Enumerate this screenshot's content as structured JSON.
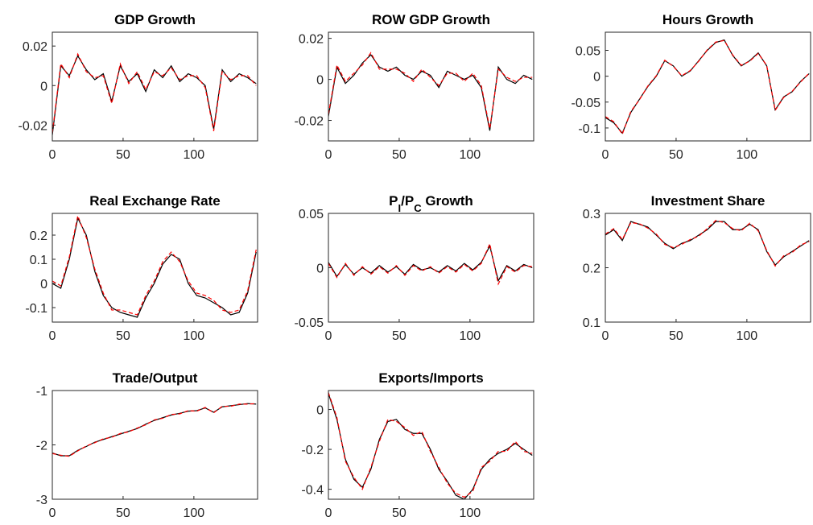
{
  "chart_data": [
    {
      "type": "line",
      "title": "GDP Growth",
      "x": [
        0,
        6,
        12,
        18,
        24,
        30,
        36,
        42,
        48,
        54,
        60,
        66,
        72,
        78,
        84,
        90,
        96,
        102,
        108,
        114,
        120,
        126,
        132,
        138,
        144
      ],
      "xlim": [
        0,
        145
      ],
      "xticks": [
        0,
        50,
        100
      ],
      "ylim": [
        -0.028,
        0.027
      ],
      "yticks": [
        -0.02,
        0,
        0.02
      ],
      "series": [
        {
          "color": "#000000",
          "style": "solid",
          "values": [
            -0.025,
            0.01,
            0.005,
            0.015,
            0.008,
            0.003,
            0.006,
            -0.008,
            0.01,
            0.002,
            0.006,
            -0.003,
            0.008,
            0.004,
            0.01,
            0.002,
            0.006,
            0.004,
            0.0,
            -0.022,
            0.008,
            0.002,
            0.006,
            0.004,
            0.001
          ]
        },
        {
          "color": "#ff0000",
          "style": "dashed",
          "values": [
            -0.024,
            0.011,
            0.004,
            0.016,
            0.007,
            0.004,
            0.005,
            -0.009,
            0.011,
            0.001,
            0.007,
            -0.002,
            0.007,
            0.005,
            0.009,
            0.003,
            0.005,
            0.005,
            -0.001,
            -0.023,
            0.007,
            0.003,
            0.005,
            0.005,
            0.0
          ]
        }
      ]
    },
    {
      "type": "line",
      "title": "ROW GDP Growth",
      "x": [
        0,
        6,
        12,
        18,
        24,
        30,
        36,
        42,
        48,
        54,
        60,
        66,
        72,
        78,
        84,
        90,
        96,
        102,
        108,
        114,
        120,
        126,
        132,
        138,
        144
      ],
      "xlim": [
        0,
        145
      ],
      "xticks": [
        0,
        50,
        100
      ],
      "ylim": [
        -0.03,
        0.023
      ],
      "yticks": [
        -0.02,
        0,
        0.02
      ],
      "series": [
        {
          "color": "#000000",
          "style": "solid",
          "values": [
            -0.018,
            0.006,
            -0.002,
            0.002,
            0.008,
            0.012,
            0.006,
            0.004,
            0.006,
            0.002,
            0.0,
            0.004,
            0.002,
            -0.004,
            0.004,
            0.002,
            0.0,
            0.002,
            -0.004,
            -0.025,
            0.006,
            0.0,
            -0.002,
            0.002,
            0.0
          ]
        },
        {
          "color": "#ff0000",
          "style": "dashed",
          "values": [
            -0.017,
            0.007,
            -0.001,
            0.003,
            0.007,
            0.013,
            0.005,
            0.005,
            0.005,
            0.003,
            -0.001,
            0.005,
            0.001,
            -0.003,
            0.003,
            0.003,
            -0.001,
            0.003,
            -0.003,
            -0.024,
            0.005,
            0.001,
            -0.001,
            0.001,
            0.001
          ]
        }
      ]
    },
    {
      "type": "line",
      "title": "Hours Growth",
      "x": [
        0,
        6,
        12,
        18,
        24,
        30,
        36,
        42,
        48,
        54,
        60,
        66,
        72,
        78,
        84,
        90,
        96,
        102,
        108,
        114,
        120,
        126,
        132,
        138,
        144
      ],
      "xlim": [
        0,
        145
      ],
      "xticks": [
        0,
        50,
        100
      ],
      "ylim": [
        -0.125,
        0.085
      ],
      "yticks": [
        -0.1,
        -0.05,
        0,
        0.05
      ],
      "series": [
        {
          "color": "#000000",
          "style": "solid",
          "values": [
            -0.08,
            -0.09,
            -0.11,
            -0.07,
            -0.045,
            -0.02,
            0.0,
            0.03,
            0.02,
            0.0,
            0.01,
            0.03,
            0.05,
            0.065,
            0.07,
            0.04,
            0.02,
            0.03,
            0.045,
            0.02,
            -0.065,
            -0.04,
            -0.03,
            -0.01,
            0.005
          ]
        },
        {
          "color": "#ff0000",
          "style": "dashed",
          "values": [
            -0.078,
            -0.088,
            -0.112,
            -0.068,
            -0.046,
            -0.019,
            0.001,
            0.031,
            0.019,
            0.001,
            0.011,
            0.029,
            0.051,
            0.066,
            0.069,
            0.041,
            0.021,
            0.029,
            0.044,
            0.021,
            -0.066,
            -0.041,
            -0.029,
            -0.011,
            0.006
          ]
        }
      ]
    },
    {
      "type": "line",
      "title": "Real Exchange Rate",
      "x": [
        0,
        6,
        12,
        18,
        24,
        30,
        36,
        42,
        48,
        54,
        60,
        66,
        72,
        78,
        84,
        90,
        96,
        102,
        108,
        114,
        120,
        126,
        132,
        138,
        144
      ],
      "xlim": [
        0,
        145
      ],
      "xticks": [
        0,
        50,
        100
      ],
      "ylim": [
        -0.16,
        0.29
      ],
      "yticks": [
        -0.1,
        0,
        0.1,
        0.2
      ],
      "series": [
        {
          "color": "#000000",
          "style": "solid",
          "values": [
            0.0,
            -0.02,
            0.1,
            0.27,
            0.2,
            0.05,
            -0.05,
            -0.1,
            -0.12,
            -0.13,
            -0.14,
            -0.06,
            0.0,
            0.08,
            0.12,
            0.1,
            0.0,
            -0.05,
            -0.06,
            -0.08,
            -0.1,
            -0.13,
            -0.12,
            -0.04,
            0.13
          ]
        },
        {
          "color": "#ff0000",
          "style": "dashed",
          "values": [
            0.01,
            -0.01,
            0.11,
            0.28,
            0.19,
            0.06,
            -0.04,
            -0.11,
            -0.11,
            -0.12,
            -0.13,
            -0.05,
            0.01,
            0.09,
            0.13,
            0.09,
            0.01,
            -0.04,
            -0.05,
            -0.07,
            -0.11,
            -0.12,
            -0.11,
            -0.03,
            0.14
          ]
        }
      ]
    },
    {
      "type": "line",
      "title": [
        {
          "text": "P"
        },
        {
          "text": "I",
          "sub": true
        },
        {
          "text": "/P"
        },
        {
          "text": "C",
          "sub": true
        },
        {
          "text": " Growth"
        }
      ],
      "x": [
        0,
        6,
        12,
        18,
        24,
        30,
        36,
        42,
        48,
        54,
        60,
        66,
        72,
        78,
        84,
        90,
        96,
        102,
        108,
        114,
        120,
        126,
        132,
        138,
        144
      ],
      "xlim": [
        0,
        145
      ],
      "xticks": [
        0,
        50,
        100
      ],
      "ylim": [
        -0.05,
        0.05
      ],
      "yticks": [
        -0.05,
        0,
        0.05
      ],
      "series": [
        {
          "color": "#000000",
          "style": "solid",
          "values": [
            0.005,
            -0.008,
            0.003,
            -0.006,
            0.0,
            -0.005,
            0.002,
            -0.004,
            0.001,
            -0.006,
            0.003,
            -0.002,
            0.0,
            -0.004,
            0.002,
            -0.003,
            0.004,
            -0.002,
            0.005,
            0.02,
            -0.012,
            0.002,
            -0.003,
            0.003,
            0.0
          ]
        },
        {
          "color": "#ff0000",
          "style": "dashed",
          "values": [
            0.004,
            -0.009,
            0.004,
            -0.007,
            0.001,
            -0.006,
            0.001,
            -0.005,
            0.002,
            -0.007,
            0.002,
            -0.003,
            0.001,
            -0.005,
            0.001,
            -0.004,
            0.003,
            -0.003,
            0.004,
            0.022,
            -0.015,
            0.001,
            -0.004,
            0.002,
            0.001
          ]
        }
      ]
    },
    {
      "type": "line",
      "title": "Investment Share",
      "x": [
        0,
        6,
        12,
        18,
        24,
        30,
        36,
        42,
        48,
        54,
        60,
        66,
        72,
        78,
        84,
        90,
        96,
        102,
        108,
        114,
        120,
        126,
        132,
        138,
        144
      ],
      "xlim": [
        0,
        145
      ],
      "xticks": [
        0,
        50,
        100
      ],
      "ylim": [
        0.1,
        0.3
      ],
      "yticks": [
        0.1,
        0.2,
        0.3
      ],
      "series": [
        {
          "color": "#000000",
          "style": "solid",
          "values": [
            0.26,
            0.27,
            0.25,
            0.285,
            0.28,
            0.275,
            0.26,
            0.245,
            0.235,
            0.245,
            0.25,
            0.26,
            0.27,
            0.285,
            0.285,
            0.27,
            0.27,
            0.28,
            0.27,
            0.23,
            0.205,
            0.22,
            0.23,
            0.24,
            0.25
          ]
        },
        {
          "color": "#ff0000",
          "style": "dashed",
          "values": [
            0.262,
            0.272,
            0.252,
            0.283,
            0.281,
            0.273,
            0.262,
            0.243,
            0.237,
            0.243,
            0.252,
            0.258,
            0.272,
            0.287,
            0.283,
            0.272,
            0.268,
            0.282,
            0.268,
            0.232,
            0.203,
            0.222,
            0.228,
            0.242,
            0.248
          ]
        }
      ]
    },
    {
      "type": "line",
      "title": "Trade/Output",
      "x": [
        0,
        6,
        12,
        18,
        24,
        30,
        36,
        42,
        48,
        54,
        60,
        66,
        72,
        78,
        84,
        90,
        96,
        102,
        108,
        114,
        120,
        126,
        132,
        138,
        144
      ],
      "xlim": [
        0,
        145
      ],
      "xticks": [
        0,
        50,
        100
      ],
      "ylim": [
        -3,
        -1
      ],
      "yticks": [
        -3,
        -2,
        -1
      ],
      "series": [
        {
          "color": "#000000",
          "style": "solid",
          "values": [
            -2.15,
            -2.2,
            -2.2,
            -2.1,
            -2.03,
            -1.95,
            -1.9,
            -1.85,
            -1.8,
            -1.75,
            -1.7,
            -1.62,
            -1.55,
            -1.5,
            -1.45,
            -1.42,
            -1.38,
            -1.37,
            -1.32,
            -1.4,
            -1.3,
            -1.28,
            -1.26,
            -1.24,
            -1.25
          ]
        },
        {
          "color": "#ff0000",
          "style": "dashed",
          "values": [
            -2.16,
            -2.19,
            -2.21,
            -2.11,
            -2.02,
            -1.96,
            -1.89,
            -1.86,
            -1.79,
            -1.76,
            -1.69,
            -1.63,
            -1.54,
            -1.51,
            -1.44,
            -1.43,
            -1.37,
            -1.38,
            -1.31,
            -1.41,
            -1.29,
            -1.29,
            -1.25,
            -1.25,
            -1.24
          ]
        }
      ]
    },
    {
      "type": "line",
      "title": "Exports/Imports",
      "x": [
        0,
        6,
        12,
        18,
        24,
        30,
        36,
        42,
        48,
        54,
        60,
        66,
        72,
        78,
        84,
        90,
        96,
        102,
        108,
        114,
        120,
        126,
        132,
        138,
        144
      ],
      "xlim": [
        0,
        145
      ],
      "xticks": [
        0,
        50,
        100
      ],
      "ylim": [
        -0.45,
        0.095
      ],
      "yticks": [
        -0.4,
        -0.2,
        0
      ],
      "series": [
        {
          "color": "#000000",
          "style": "solid",
          "values": [
            0.08,
            -0.05,
            -0.25,
            -0.35,
            -0.39,
            -0.3,
            -0.15,
            -0.06,
            -0.05,
            -0.1,
            -0.12,
            -0.12,
            -0.2,
            -0.3,
            -0.36,
            -0.43,
            -0.45,
            -0.4,
            -0.3,
            -0.25,
            -0.22,
            -0.2,
            -0.17,
            -0.2,
            -0.23
          ]
        },
        {
          "color": "#ff0000",
          "style": "dashed",
          "values": [
            0.085,
            -0.04,
            -0.26,
            -0.34,
            -0.4,
            -0.29,
            -0.16,
            -0.05,
            -0.06,
            -0.09,
            -0.13,
            -0.11,
            -0.21,
            -0.29,
            -0.37,
            -0.42,
            -0.44,
            -0.41,
            -0.29,
            -0.26,
            -0.21,
            -0.21,
            -0.16,
            -0.21,
            -0.22
          ]
        }
      ]
    }
  ]
}
